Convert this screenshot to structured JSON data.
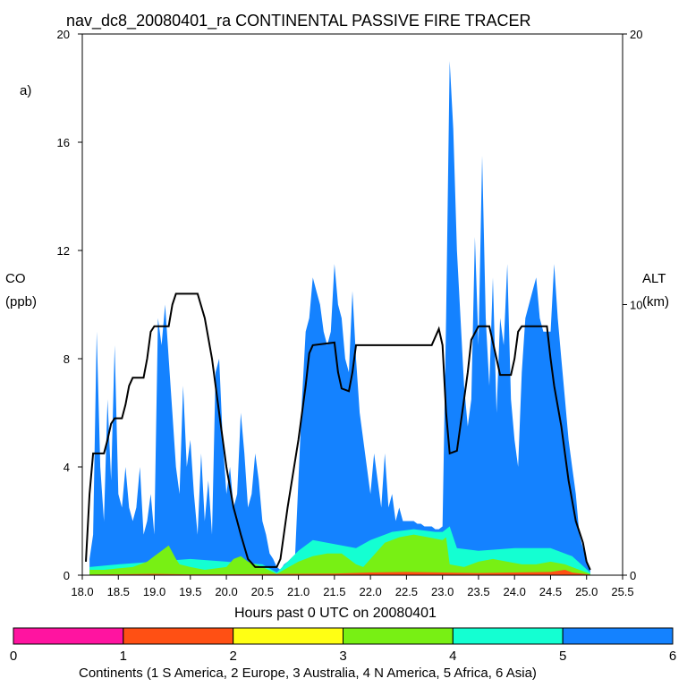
{
  "chart_data": {
    "type": "area",
    "title": "nav_dc8_20080401_ra CONTINENTAL PASSIVE FIRE TRACER",
    "panel_label": "a)",
    "xlabel": "Hours past 0 UTC on 20080401",
    "ylabel_left_line1": "CO",
    "ylabel_left_line2": "(ppb)",
    "ylabel_right_line1": "ALT",
    "ylabel_right_line2": "(km)",
    "xlim": [
      18.0,
      25.5
    ],
    "ylim_left": [
      0,
      20
    ],
    "ylim_right": [
      0,
      20
    ],
    "x_ticks": [
      "18.0",
      "18.5",
      "19.0",
      "19.5",
      "20.0",
      "20.5",
      "21.0",
      "21.5",
      "22.0",
      "22.5",
      "23.0",
      "23.5",
      "24.0",
      "24.5",
      "25.0",
      "25.5"
    ],
    "x_tick_values": [
      18.0,
      18.5,
      19.0,
      19.5,
      20.0,
      20.5,
      21.0,
      21.5,
      22.0,
      22.5,
      23.0,
      23.5,
      24.0,
      24.5,
      25.0,
      25.5
    ],
    "y_left_ticks": [
      "0",
      "4",
      "8",
      "12",
      "16",
      "20"
    ],
    "y_left_tick_values": [
      0,
      4,
      8,
      12,
      16,
      20
    ],
    "y_right_ticks": [
      "0",
      "10",
      "20"
    ],
    "y_right_tick_values": [
      0,
      10,
      20
    ],
    "colorbar": {
      "label": "Continents (1 S America, 2 Europe, 3 Australia, 4 N America, 5 Africa, 6 Asia)",
      "ticks": [
        "0",
        "1",
        "2",
        "3",
        "4",
        "5",
        "6"
      ],
      "colors": [
        "#ff14a0",
        "#ff5014",
        "#ffff14",
        "#78f014",
        "#14ffd2",
        "#1482ff"
      ]
    },
    "series_colors": {
      "s_america": "#ff14a0",
      "europe": "#ff5014",
      "australia": "#ffff14",
      "n_america": "#78f014",
      "africa": "#14ffd2",
      "asia": "#1482ff",
      "altitude": "#000000"
    },
    "asia_total": [
      [
        18.1,
        0.6
      ],
      [
        18.15,
        1.5
      ],
      [
        18.2,
        9.0
      ],
      [
        18.25,
        4.0
      ],
      [
        18.3,
        2.0
      ],
      [
        18.35,
        6.5
      ],
      [
        18.4,
        3.5
      ],
      [
        18.45,
        8.5
      ],
      [
        18.5,
        3.0
      ],
      [
        18.55,
        2.5
      ],
      [
        18.6,
        4.0
      ],
      [
        18.65,
        2.5
      ],
      [
        18.7,
        2.0
      ],
      [
        18.75,
        2.5
      ],
      [
        18.8,
        4.0
      ],
      [
        18.85,
        1.5
      ],
      [
        18.9,
        2.0
      ],
      [
        18.95,
        3.0
      ],
      [
        19.0,
        1.5
      ],
      [
        19.05,
        9.5
      ],
      [
        19.1,
        8.5
      ],
      [
        19.15,
        10.0
      ],
      [
        19.2,
        8.0
      ],
      [
        19.25,
        6.0
      ],
      [
        19.3,
        4.0
      ],
      [
        19.35,
        3.0
      ],
      [
        19.4,
        7.0
      ],
      [
        19.45,
        4.0
      ],
      [
        19.5,
        5.0
      ],
      [
        19.55,
        3.0
      ],
      [
        19.6,
        1.5
      ],
      [
        19.65,
        4.5
      ],
      [
        19.7,
        2.0
      ],
      [
        19.75,
        3.5
      ],
      [
        19.8,
        1.5
      ],
      [
        19.85,
        7.5
      ],
      [
        19.9,
        8.0
      ],
      [
        19.95,
        5.0
      ],
      [
        20.0,
        3.0
      ],
      [
        20.05,
        4.0
      ],
      [
        20.1,
        2.5
      ],
      [
        20.15,
        3.0
      ],
      [
        20.2,
        6.0
      ],
      [
        20.25,
        4.5
      ],
      [
        20.3,
        2.5
      ],
      [
        20.35,
        3.0
      ],
      [
        20.4,
        4.5
      ],
      [
        20.45,
        3.5
      ],
      [
        20.5,
        2.0
      ],
      [
        20.55,
        1.5
      ],
      [
        20.6,
        0.8
      ],
      [
        20.65,
        0.6
      ],
      [
        20.7,
        0.3
      ],
      [
        20.75,
        0.2
      ],
      [
        20.8,
        0.4
      ],
      [
        20.85,
        0.5
      ],
      [
        20.9,
        0.3
      ],
      [
        20.95,
        0.5
      ],
      [
        21.0,
        3.5
      ],
      [
        21.05,
        6.5
      ],
      [
        21.1,
        9.0
      ],
      [
        21.15,
        9.5
      ],
      [
        21.2,
        11.0
      ],
      [
        21.25,
        10.5
      ],
      [
        21.3,
        10.0
      ],
      [
        21.35,
        9.0
      ],
      [
        21.4,
        8.5
      ],
      [
        21.45,
        9.0
      ],
      [
        21.5,
        11.5
      ],
      [
        21.55,
        10.0
      ],
      [
        21.6,
        9.5
      ],
      [
        21.65,
        8.0
      ],
      [
        21.7,
        7.5
      ],
      [
        21.75,
        10.5
      ],
      [
        21.8,
        8.0
      ],
      [
        21.85,
        6.0
      ],
      [
        21.9,
        5.0
      ],
      [
        21.95,
        4.0
      ],
      [
        22.0,
        3.0
      ],
      [
        22.05,
        4.5
      ],
      [
        22.1,
        3.5
      ],
      [
        22.15,
        2.5
      ],
      [
        22.2,
        4.5
      ],
      [
        22.25,
        2.5
      ],
      [
        22.3,
        3.0
      ],
      [
        22.35,
        2.0
      ],
      [
        22.4,
        2.5
      ],
      [
        22.45,
        2.0
      ],
      [
        22.5,
        2.0
      ],
      [
        22.55,
        2.0
      ],
      [
        22.6,
        2.0
      ],
      [
        22.65,
        1.9
      ],
      [
        22.7,
        1.9
      ],
      [
        22.75,
        1.8
      ],
      [
        22.8,
        1.8
      ],
      [
        22.85,
        1.8
      ],
      [
        22.9,
        1.7
      ],
      [
        22.95,
        1.7
      ],
      [
        23.0,
        1.8
      ],
      [
        23.05,
        9.5
      ],
      [
        23.1,
        19.0
      ],
      [
        23.15,
        16.5
      ],
      [
        23.2,
        12.0
      ],
      [
        23.25,
        9.5
      ],
      [
        23.3,
        7.0
      ],
      [
        23.35,
        5.5
      ],
      [
        23.4,
        6.5
      ],
      [
        23.45,
        12.5
      ],
      [
        23.5,
        8.5
      ],
      [
        23.55,
        15.5
      ],
      [
        23.6,
        9.5
      ],
      [
        23.65,
        7.0
      ],
      [
        23.7,
        11.0
      ],
      [
        23.75,
        6.0
      ],
      [
        23.8,
        9.5
      ],
      [
        23.85,
        8.5
      ],
      [
        23.9,
        11.5
      ],
      [
        23.95,
        6.5
      ],
      [
        24.0,
        5.0
      ],
      [
        24.05,
        4.0
      ],
      [
        24.1,
        7.5
      ],
      [
        24.15,
        9.5
      ],
      [
        24.2,
        10.0
      ],
      [
        24.25,
        10.5
      ],
      [
        24.3,
        11.0
      ],
      [
        24.35,
        9.5
      ],
      [
        24.4,
        9.0
      ],
      [
        24.45,
        9.0
      ],
      [
        24.5,
        9.0
      ],
      [
        24.55,
        11.5
      ],
      [
        24.6,
        9.5
      ],
      [
        24.65,
        8.0
      ],
      [
        24.7,
        6.5
      ],
      [
        24.75,
        5.0
      ],
      [
        24.8,
        4.0
      ],
      [
        24.85,
        3.0
      ],
      [
        24.9,
        1.5
      ],
      [
        24.95,
        1.0
      ],
      [
        25.0,
        0.6
      ],
      [
        25.05,
        0.2
      ]
    ],
    "africa_top": [
      [
        18.1,
        0.3
      ],
      [
        18.5,
        0.4
      ],
      [
        19.0,
        0.5
      ],
      [
        19.5,
        0.6
      ],
      [
        20.0,
        0.5
      ],
      [
        20.5,
        0.4
      ],
      [
        20.7,
        0.1
      ],
      [
        21.0,
        0.9
      ],
      [
        21.2,
        1.3
      ],
      [
        21.4,
        1.2
      ],
      [
        21.6,
        1.1
      ],
      [
        21.8,
        1.0
      ],
      [
        22.0,
        1.3
      ],
      [
        22.3,
        1.6
      ],
      [
        22.6,
        1.7
      ],
      [
        22.9,
        1.6
      ],
      [
        23.0,
        1.6
      ],
      [
        23.1,
        1.8
      ],
      [
        23.2,
        1.0
      ],
      [
        23.5,
        0.9
      ],
      [
        24.0,
        1.0
      ],
      [
        24.5,
        1.0
      ],
      [
        24.8,
        0.7
      ],
      [
        25.05,
        0.1
      ]
    ],
    "n_america_top": [
      [
        18.1,
        0.2
      ],
      [
        18.3,
        0.2
      ],
      [
        18.5,
        0.25
      ],
      [
        18.7,
        0.3
      ],
      [
        18.9,
        0.5
      ],
      [
        19.0,
        0.7
      ],
      [
        19.1,
        0.9
      ],
      [
        19.2,
        1.1
      ],
      [
        19.3,
        0.6
      ],
      [
        19.35,
        0.4
      ],
      [
        19.5,
        0.3
      ],
      [
        19.7,
        0.2
      ],
      [
        20.0,
        0.3
      ],
      [
        20.1,
        0.6
      ],
      [
        20.2,
        0.7
      ],
      [
        20.3,
        0.5
      ],
      [
        20.5,
        0.3
      ],
      [
        20.7,
        0.05
      ],
      [
        21.0,
        0.5
      ],
      [
        21.2,
        0.7
      ],
      [
        21.4,
        0.8
      ],
      [
        21.6,
        0.8
      ],
      [
        21.8,
        0.4
      ],
      [
        21.9,
        0.3
      ],
      [
        22.0,
        0.6
      ],
      [
        22.2,
        1.2
      ],
      [
        22.4,
        1.4
      ],
      [
        22.6,
        1.5
      ],
      [
        22.8,
        1.4
      ],
      [
        23.0,
        1.3
      ],
      [
        23.05,
        1.4
      ],
      [
        23.1,
        0.4
      ],
      [
        23.3,
        0.3
      ],
      [
        23.5,
        0.5
      ],
      [
        23.7,
        0.6
      ],
      [
        23.9,
        0.5
      ],
      [
        24.1,
        0.4
      ],
      [
        24.3,
        0.4
      ],
      [
        24.5,
        0.5
      ],
      [
        24.7,
        0.4
      ],
      [
        24.9,
        0.2
      ],
      [
        25.05,
        0.05
      ]
    ],
    "europe_top": [
      [
        18.1,
        0.02
      ],
      [
        19.0,
        0.05
      ],
      [
        19.5,
        0.03
      ],
      [
        20.0,
        0.03
      ],
      [
        21.0,
        0.05
      ],
      [
        21.5,
        0.06
      ],
      [
        22.0,
        0.1
      ],
      [
        22.5,
        0.12
      ],
      [
        23.0,
        0.1
      ],
      [
        23.5,
        0.08
      ],
      [
        24.0,
        0.1
      ],
      [
        24.5,
        0.12
      ],
      [
        24.7,
        0.2
      ],
      [
        24.8,
        0.1
      ],
      [
        25.05,
        0.02
      ]
    ],
    "altitude_km": [
      [
        18.05,
        0.5
      ],
      [
        18.1,
        3.0
      ],
      [
        18.15,
        4.5
      ],
      [
        18.3,
        4.5
      ],
      [
        18.35,
        5.0
      ],
      [
        18.4,
        5.6
      ],
      [
        18.45,
        5.8
      ],
      [
        18.55,
        5.8
      ],
      [
        18.6,
        6.3
      ],
      [
        18.65,
        7.0
      ],
      [
        18.7,
        7.3
      ],
      [
        18.85,
        7.3
      ],
      [
        18.9,
        8.0
      ],
      [
        18.95,
        9.0
      ],
      [
        19.0,
        9.2
      ],
      [
        19.2,
        9.2
      ],
      [
        19.25,
        10.0
      ],
      [
        19.3,
        10.4
      ],
      [
        19.6,
        10.4
      ],
      [
        19.7,
        9.5
      ],
      [
        19.8,
        8.0
      ],
      [
        19.9,
        6.0
      ],
      [
        20.0,
        4.0
      ],
      [
        20.1,
        2.5
      ],
      [
        20.2,
        1.5
      ],
      [
        20.3,
        0.6
      ],
      [
        20.4,
        0.3
      ],
      [
        20.7,
        0.3
      ],
      [
        20.75,
        0.6
      ],
      [
        20.85,
        2.5
      ],
      [
        21.0,
        5.0
      ],
      [
        21.1,
        7.0
      ],
      [
        21.15,
        8.2
      ],
      [
        21.2,
        8.5
      ],
      [
        21.5,
        8.6
      ],
      [
        21.55,
        7.5
      ],
      [
        21.6,
        6.9
      ],
      [
        21.7,
        6.8
      ],
      [
        21.75,
        7.5
      ],
      [
        21.8,
        8.5
      ],
      [
        22.3,
        8.5
      ],
      [
        22.5,
        8.5
      ],
      [
        22.85,
        8.5
      ],
      [
        22.95,
        9.1
      ],
      [
        23.0,
        8.5
      ],
      [
        23.05,
        6.0
      ],
      [
        23.1,
        4.5
      ],
      [
        23.2,
        4.6
      ],
      [
        23.3,
        6.5
      ],
      [
        23.35,
        7.5
      ],
      [
        23.4,
        8.7
      ],
      [
        23.5,
        9.2
      ],
      [
        23.65,
        9.2
      ],
      [
        23.75,
        8.0
      ],
      [
        23.8,
        7.4
      ],
      [
        23.95,
        7.4
      ],
      [
        24.0,
        8.0
      ],
      [
        24.05,
        9.0
      ],
      [
        24.1,
        9.2
      ],
      [
        24.45,
        9.2
      ],
      [
        24.5,
        8.0
      ],
      [
        24.55,
        7.0
      ],
      [
        24.65,
        5.5
      ],
      [
        24.75,
        3.5
      ],
      [
        24.85,
        2.0
      ],
      [
        24.95,
        1.2
      ],
      [
        25.0,
        0.5
      ],
      [
        25.05,
        0.2
      ]
    ]
  }
}
